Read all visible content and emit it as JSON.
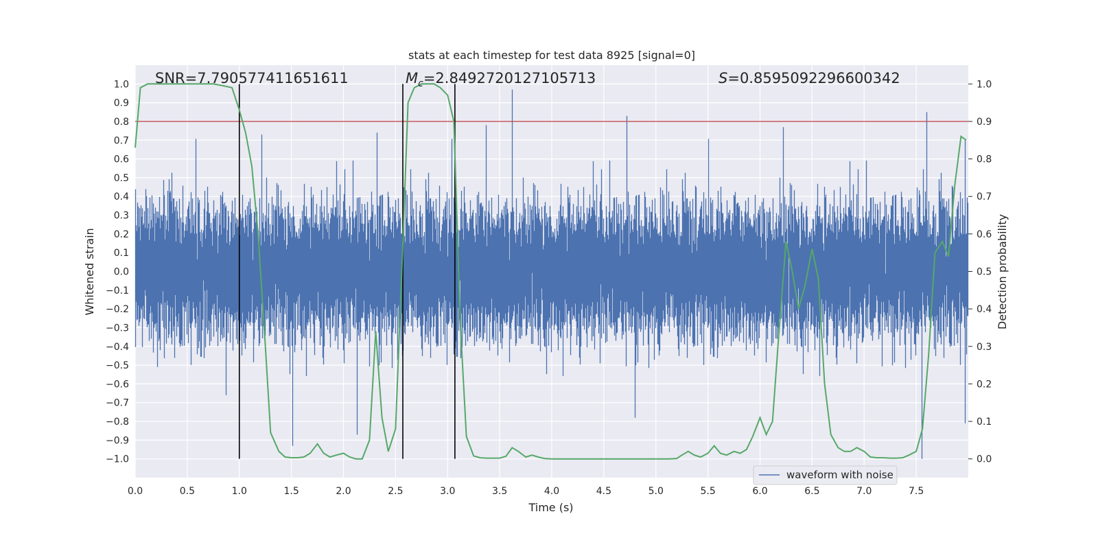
{
  "chart_data": {
    "type": "line",
    "title": "stats at each timestep for test data 8925 [signal=0]",
    "xlabel": "Time (s)",
    "ylabel": "Whitened strain",
    "y2label": "Detection probability",
    "xlim": [
      0.0,
      8.0
    ],
    "ylim": [
      -1.1,
      1.1
    ],
    "y2lim": [
      -0.05,
      1.05
    ],
    "xticks": [
      "0.0",
      "0.5",
      "1.0",
      "1.5",
      "2.0",
      "2.5",
      "3.0",
      "3.5",
      "4.0",
      "4.5",
      "5.0",
      "5.5",
      "6.0",
      "6.5",
      "7.0",
      "7.5"
    ],
    "yticks": [
      "1.0",
      "0.9",
      "0.8",
      "0.7",
      "0.6",
      "0.5",
      "0.4",
      "0.3",
      "0.2",
      "0.1",
      "0.0",
      "-0.1",
      "-0.2",
      "-0.3",
      "-0.4",
      "-0.5",
      "-0.6",
      "-0.7",
      "-0.8",
      "-0.9",
      "-1.0"
    ],
    "y2ticks": [
      "1.0",
      "0.9",
      "0.8",
      "0.7",
      "0.6",
      "0.5",
      "0.4",
      "0.3",
      "0.2",
      "0.1",
      "0.0"
    ],
    "grid": true,
    "legend": {
      "position": "lower-right",
      "entries": [
        "waveform with noise"
      ]
    },
    "annotations": {
      "snr": "SNR=7.790577411651611",
      "mc_symbol": "M",
      "mc_sub": "c",
      "mc_value": "=2.8492720127105713",
      "s_symbol": "S",
      "s_value": "=0.8595092296600342"
    },
    "threshold_prob": 0.9,
    "vertical_lines_x": [
      1.0,
      2.57,
      3.07
    ],
    "waveform": {
      "name": "waveform with noise",
      "sample_rate": 2048,
      "duration": 8.0,
      "envelope": 0.33,
      "peaks": [
        {
          "x": 3.62,
          "y": 0.97
        },
        {
          "x": 4.72,
          "y": 0.83
        },
        {
          "x": 7.6,
          "y": 0.85
        },
        {
          "x": 3.37,
          "y": 0.78
        },
        {
          "x": 6.22,
          "y": 0.77
        },
        {
          "x": 1.21,
          "y": 0.73
        },
        {
          "x": 2.32,
          "y": 0.74
        },
        {
          "x": 1.51,
          "y": -0.93
        },
        {
          "x": 2.13,
          "y": -0.87
        },
        {
          "x": 4.8,
          "y": -0.78
        },
        {
          "x": 7.55,
          "y": -1.0
        },
        {
          "x": 0.87,
          "y": -0.66
        },
        {
          "x": 7.97,
          "y": -0.81
        }
      ]
    },
    "detection_probability": {
      "x": [
        0.0,
        0.05,
        0.12,
        0.2,
        0.3,
        0.45,
        0.6,
        0.75,
        0.85,
        0.93,
        1.0,
        1.06,
        1.12,
        1.18,
        1.25,
        1.3,
        1.38,
        1.44,
        1.5,
        1.56,
        1.62,
        1.68,
        1.75,
        1.81,
        1.87,
        1.93,
        2.0,
        2.06,
        2.12,
        2.18,
        2.25,
        2.31,
        2.37,
        2.43,
        2.5,
        2.56,
        2.62,
        2.68,
        2.75,
        2.81,
        2.87,
        2.93,
        3.0,
        3.06,
        3.12,
        3.18,
        3.25,
        3.31,
        3.37,
        3.43,
        3.5,
        3.56,
        3.62,
        3.68,
        3.75,
        3.81,
        3.87,
        3.93,
        4.0,
        4.1,
        4.3,
        4.5,
        4.7,
        4.9,
        5.0,
        5.12,
        5.2,
        5.25,
        5.31,
        5.37,
        5.43,
        5.5,
        5.56,
        5.62,
        5.68,
        5.75,
        5.81,
        5.87,
        5.93,
        6.0,
        6.06,
        6.12,
        6.18,
        6.25,
        6.31,
        6.37,
        6.43,
        6.5,
        6.56,
        6.62,
        6.68,
        6.75,
        6.81,
        6.87,
        6.93,
        7.0,
        7.06,
        7.12,
        7.18,
        7.25,
        7.31,
        7.37,
        7.43,
        7.5,
        7.56,
        7.62,
        7.68,
        7.75,
        7.81,
        7.87,
        7.93,
        7.98
      ],
      "y": [
        0.83,
        0.99,
        1.0,
        1.0,
        1.0,
        1.0,
        1.0,
        1.0,
        0.995,
        0.99,
        0.93,
        0.87,
        0.78,
        0.6,
        0.3,
        0.07,
        0.02,
        0.005,
        0.003,
        0.003,
        0.005,
        0.015,
        0.04,
        0.015,
        0.005,
        0.01,
        0.015,
        0.005,
        0.0,
        0.0,
        0.05,
        0.34,
        0.11,
        0.02,
        0.08,
        0.5,
        0.95,
        0.99,
        1.0,
        1.0,
        1.0,
        0.99,
        0.97,
        0.9,
        0.37,
        0.06,
        0.008,
        0.003,
        0.002,
        0.002,
        0.002,
        0.007,
        0.03,
        0.02,
        0.005,
        0.01,
        0.005,
        0.001,
        0.0,
        0.0,
        0.0,
        0.0,
        0.0,
        0.0,
        0.0,
        0.0,
        0.001,
        0.01,
        0.02,
        0.01,
        0.005,
        0.015,
        0.035,
        0.015,
        0.01,
        0.02,
        0.015,
        0.025,
        0.06,
        0.11,
        0.065,
        0.1,
        0.33,
        0.58,
        0.5,
        0.4,
        0.46,
        0.56,
        0.48,
        0.2,
        0.065,
        0.03,
        0.02,
        0.02,
        0.03,
        0.02,
        0.005,
        0.003,
        0.003,
        0.002,
        0.002,
        0.003,
        0.01,
        0.02,
        0.08,
        0.28,
        0.55,
        0.58,
        0.54,
        0.73,
        0.86,
        0.85
      ]
    }
  }
}
